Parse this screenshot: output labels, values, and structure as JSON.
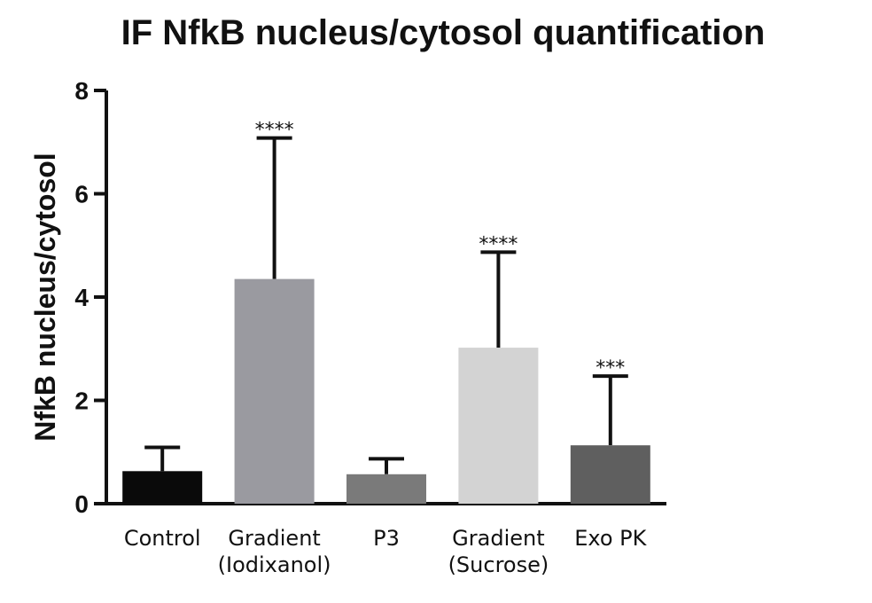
{
  "chart_data": {
    "type": "bar",
    "title": "IF NfkB nucleus/cytosol quantification",
    "ylabel": "NfkB nucleus/cytosol",
    "xlabel": "",
    "ylim": [
      0,
      8
    ],
    "yticks": [
      "0",
      "2",
      "4",
      "6",
      "8"
    ],
    "categories": [
      [
        "Control"
      ],
      [
        "Gradient",
        "(Iodixanol)"
      ],
      [
        "P3"
      ],
      [
        "Gradient",
        "(Sucrose)"
      ],
      [
        "Exo PK"
      ]
    ],
    "values": [
      0.63,
      4.35,
      0.57,
      3.02,
      1.13
    ],
    "error_upper": [
      1.09,
      7.08,
      0.87,
      4.87,
      2.47
    ],
    "significance": [
      "",
      "****",
      "",
      "****",
      "***"
    ],
    "colors": [
      "#0a0a0a",
      "#9a9aa0",
      "#7a7a7a",
      "#d3d3d3",
      "#5f5f5f"
    ],
    "grid": false,
    "legend": "none"
  }
}
